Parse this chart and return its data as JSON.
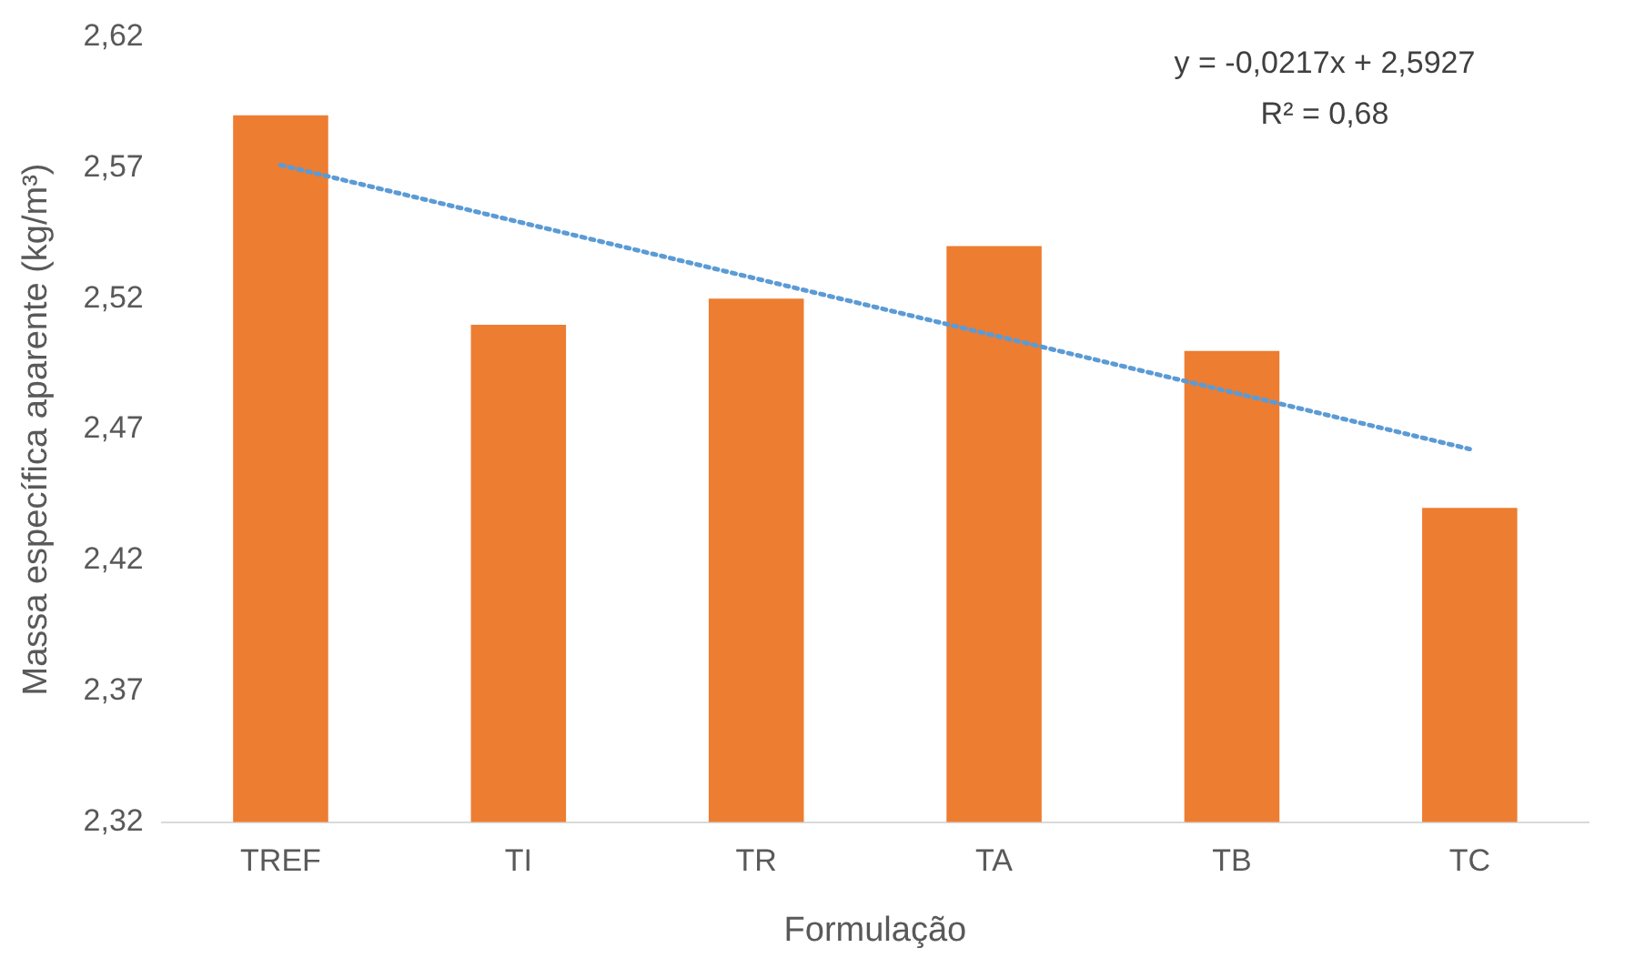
{
  "chart_data": {
    "type": "bar",
    "xlabel": "Formulação",
    "ylabel": "Massa específica aparente (kg/m³)",
    "categories": [
      "TREF",
      "TI",
      "TR",
      "TA",
      "TB",
      "TC"
    ],
    "series": [
      {
        "color": "#ed7d31",
        "values": [
          2.59,
          2.51,
          2.52,
          2.54,
          2.5,
          2.44
        ]
      },
      {
        "type": "line",
        "color": "#5b9bd5",
        "line_style": "dotted",
        "marker": "none",
        "values": [
          2.571,
          2.5493,
          2.5276,
          2.5059,
          2.4842,
          2.4625
        ]
      }
    ],
    "ylim": [
      2.32,
      2.62
    ],
    "yticks": [
      {
        "value": 2.32,
        "label": "2,32"
      },
      {
        "value": 2.37,
        "label": "2,37"
      },
      {
        "value": 2.42,
        "label": "2,42"
      },
      {
        "value": 2.47,
        "label": "2,47"
      },
      {
        "value": 2.52,
        "label": "2,52"
      },
      {
        "value": 2.57,
        "label": "2,57"
      },
      {
        "value": 2.62,
        "label": "2,62"
      }
    ],
    "grid": false,
    "legend": false,
    "annotations": [
      "y = -0,0217x + 2,5927",
      "R² = 0,68"
    ]
  }
}
